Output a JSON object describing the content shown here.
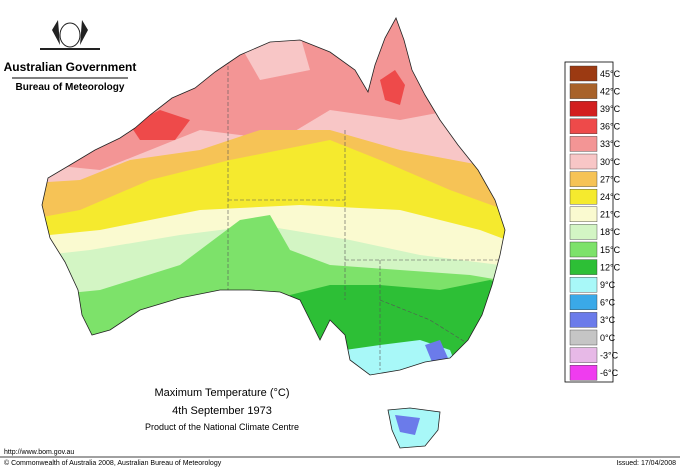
{
  "header": {
    "government": "Australian Government",
    "agency": "Bureau of Meteorology"
  },
  "map": {
    "title": "Maximum Temperature (°C)",
    "date": "4th September 1973",
    "product": "Product of the National Climate Centre"
  },
  "legend": [
    {
      "label": "45°C",
      "color": "#9c3a12"
    },
    {
      "label": "42°C",
      "color": "#a8622a"
    },
    {
      "label": "39°C",
      "color": "#d21f1f"
    },
    {
      "label": "36°C",
      "color": "#ee4a4a"
    },
    {
      "label": "33°C",
      "color": "#f39595"
    },
    {
      "label": "30°C",
      "color": "#f8c6c6"
    },
    {
      "label": "27°C",
      "color": "#f6c356"
    },
    {
      "label": "24°C",
      "color": "#f5ea2e"
    },
    {
      "label": "21°C",
      "color": "#fafad0"
    },
    {
      "label": "18°C",
      "color": "#d3f5c4"
    },
    {
      "label": "15°C",
      "color": "#7de26a"
    },
    {
      "label": "12°C",
      "color": "#2dbf36"
    },
    {
      "label": "9°C",
      "color": "#a8f8f8"
    },
    {
      "label": "6°C",
      "color": "#3aa9e8"
    },
    {
      "label": "3°C",
      "color": "#6b7bea"
    },
    {
      "label": "0°C",
      "color": "#c5c5c5"
    },
    {
      "label": "-3°C",
      "color": "#e7b9e7"
    },
    {
      "label": "-6°C",
      "color": "#ef3cef"
    }
  ],
  "footer": {
    "url": "http://www.bom.gov.au",
    "copyright": "© Commonwealth of Australia 2008, Australian Bureau of Meteorology",
    "issued": "Issued: 17/04/2008"
  }
}
